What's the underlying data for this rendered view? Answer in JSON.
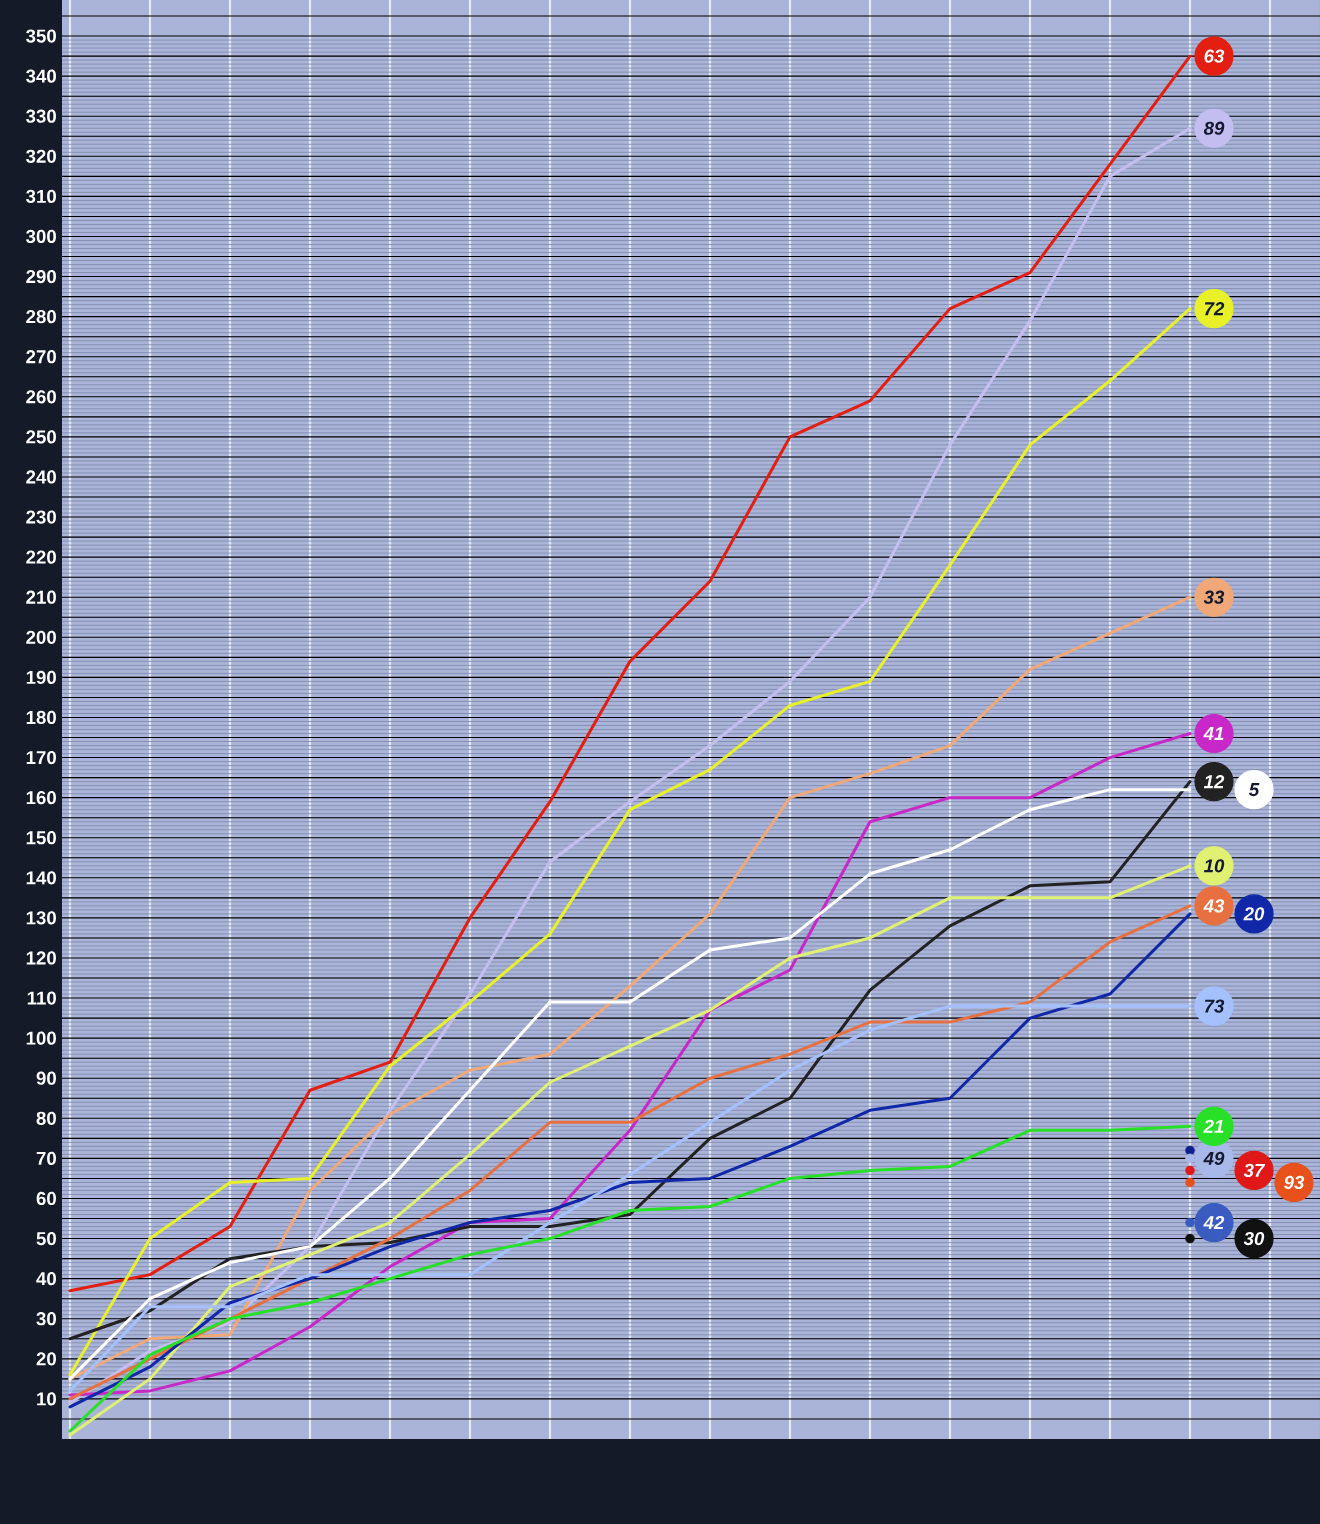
{
  "chart_data": {
    "type": "line",
    "categories": [
      null,
      null,
      null,
      null,
      null,
      null,
      null,
      null,
      null,
      null,
      null,
      null,
      null,
      null,
      null,
      null
    ],
    "series": [
      {
        "name": "63",
        "color": "#e41e10",
        "values": [
          37,
          41,
          53,
          87,
          94,
          130,
          159,
          194,
          214,
          250,
          259,
          282,
          291,
          318,
          345,
          null
        ]
      },
      {
        "name": "89",
        "color": "#c4bef0",
        "values": [
          9,
          22,
          29,
          48,
          82,
          111,
          144,
          159,
          173,
          189,
          210,
          248,
          279,
          315,
          327,
          null
        ]
      },
      {
        "name": "72",
        "color": "#e8f028",
        "values": [
          16,
          50,
          64,
          65,
          93,
          109,
          126,
          157,
          167,
          183,
          189,
          218,
          248,
          264,
          282,
          null
        ]
      },
      {
        "name": "33",
        "color": "#f0a878",
        "values": [
          15,
          25,
          26,
          62,
          81,
          92,
          96,
          113,
          131,
          160,
          166,
          173,
          192,
          201,
          210,
          null
        ]
      },
      {
        "name": "41",
        "color": "#c828c8",
        "values": [
          11,
          12,
          17,
          28,
          43,
          54,
          55,
          77,
          107,
          117,
          154,
          160,
          160,
          170,
          176,
          null
        ]
      },
      {
        "name": "12",
        "color": "#222222",
        "values": [
          25,
          32,
          45,
          48,
          49,
          53,
          53,
          56,
          75,
          85,
          112,
          128,
          138,
          139,
          164,
          null
        ]
      },
      {
        "name": "5",
        "color": "#ffffff",
        "values": [
          15,
          35,
          44,
          48,
          65,
          87,
          109,
          109,
          122,
          125,
          141,
          147,
          157,
          162,
          162,
          null
        ]
      },
      {
        "name": "10",
        "color": "#e0f070",
        "values": [
          1,
          15,
          38,
          46,
          54,
          71,
          89,
          98,
          107,
          120,
          125,
          135,
          135,
          135,
          143,
          null
        ]
      },
      {
        "name": "43",
        "color": "#e87040",
        "values": [
          10,
          20,
          30,
          40,
          50,
          62,
          79,
          79,
          90,
          96,
          104,
          104,
          109,
          124,
          133,
          null
        ]
      },
      {
        "name": "20",
        "color": "#1028a8",
        "values": [
          8,
          18,
          34,
          40,
          48,
          54,
          57,
          64,
          65,
          73,
          82,
          85,
          105,
          111,
          131,
          null
        ]
      },
      {
        "name": "73",
        "color": "#a4c0ff",
        "values": [
          12,
          33,
          33,
          41,
          41,
          41,
          54,
          66,
          79,
          92,
          102,
          108,
          108,
          108,
          108,
          null
        ]
      },
      {
        "name": "21",
        "color": "#28e028",
        "values": [
          2,
          21,
          30,
          34,
          40,
          46,
          50,
          57,
          58,
          65,
          67,
          68,
          77,
          77,
          78,
          null
        ]
      },
      {
        "color": "#10208a",
        "marker": "circle",
        "values": [
          null,
          null,
          null,
          null,
          null,
          null,
          null,
          null,
          null,
          null,
          null,
          null,
          null,
          null,
          72,
          null
        ]
      },
      {
        "name": "49",
        "color": "#a8b8e8",
        "marker": "circle",
        "values": [
          null,
          null,
          null,
          null,
          null,
          null,
          null,
          null,
          null,
          null,
          null,
          null,
          null,
          null,
          70,
          null
        ]
      },
      {
        "name": "37",
        "color": "#e01818",
        "marker": "circle",
        "values": [
          null,
          null,
          null,
          null,
          null,
          null,
          null,
          null,
          null,
          null,
          null,
          null,
          null,
          null,
          67,
          null
        ]
      },
      {
        "name": "93",
        "color": "#e8501c",
        "marker": "circle",
        "values": [
          null,
          null,
          null,
          null,
          null,
          null,
          null,
          null,
          null,
          null,
          null,
          null,
          null,
          null,
          64,
          null
        ]
      },
      {
        "name": "42",
        "color": "#3a5cc0",
        "marker": "circle",
        "values": [
          null,
          null,
          null,
          null,
          null,
          null,
          null,
          null,
          null,
          null,
          null,
          null,
          null,
          null,
          54,
          null
        ]
      },
      {
        "name": "30",
        "color": "#111111",
        "marker": "circle",
        "values": [
          null,
          null,
          null,
          null,
          null,
          null,
          null,
          null,
          null,
          null,
          null,
          null,
          null,
          null,
          50,
          null
        ]
      }
    ],
    "ylim": [
      0,
      359
    ],
    "yticks": [
      10,
      20,
      30,
      40,
      50,
      60,
      70,
      80,
      90,
      100,
      110,
      120,
      130,
      140,
      150,
      160,
      170,
      180,
      190,
      200,
      210,
      220,
      230,
      240,
      250,
      260,
      270,
      280,
      290,
      300,
      310,
      320,
      330,
      340,
      350
    ],
    "grid": true,
    "legend": "right",
    "tick_labels": "y"
  }
}
